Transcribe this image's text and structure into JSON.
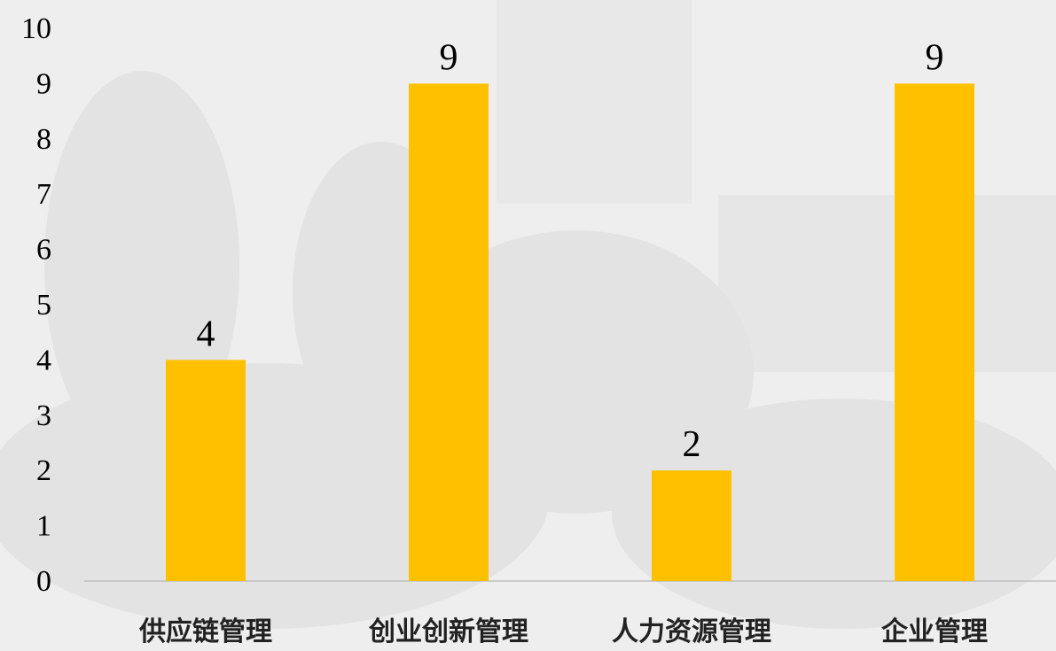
{
  "chart_data": {
    "type": "bar",
    "categories": [
      "供应链管理",
      "创业创新管理",
      "人力资源管理",
      "企业管理"
    ],
    "values": [
      4,
      9,
      2,
      9
    ],
    "color": "#ffc000",
    "ylim": [
      0,
      10
    ],
    "yticks": [
      0,
      1,
      2,
      3,
      4,
      5,
      6,
      7,
      8,
      9,
      10
    ],
    "grid": false
  }
}
